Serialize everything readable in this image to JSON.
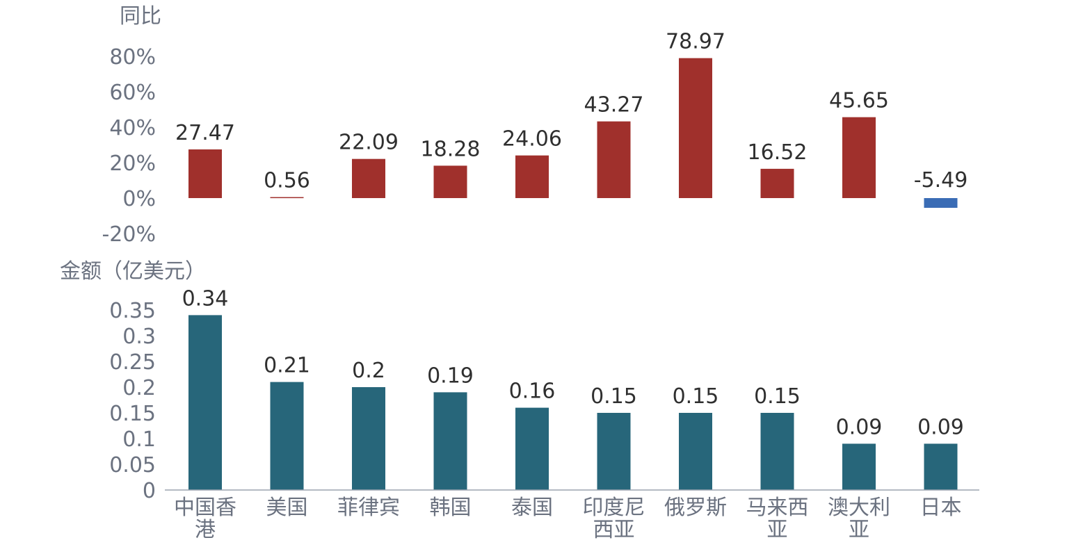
{
  "chart_data": [
    {
      "type": "bar",
      "ylabel": "同比",
      "categories": [
        "中国香港",
        "美国",
        "菲律宾",
        "韩国",
        "泰国",
        "印度尼西亚",
        "俄罗斯",
        "马来西亚",
        "澳大利亚",
        "日本"
      ],
      "values": [
        27.47,
        0.56,
        22.09,
        18.28,
        24.06,
        43.27,
        78.97,
        16.52,
        45.65,
        -5.49
      ],
      "data_labels": [
        "27.47",
        "0.56",
        "22.09",
        "18.28",
        "24.06",
        "43.27",
        "78.97",
        "16.52",
        "45.65",
        "-5.49"
      ],
      "ylim": [
        -20,
        80
      ],
      "yticks": [
        -20,
        0,
        20,
        40,
        60,
        80
      ],
      "ytick_labels": [
        "-20%",
        "0%",
        "20%",
        "40%",
        "60%",
        "80%"
      ],
      "colors": {
        "positive": "#A0302C",
        "negative": "#3A6CB5"
      },
      "grid": false
    },
    {
      "type": "bar",
      "ylabel": "金额（亿美元）",
      "categories": [
        "中国香港",
        "美国",
        "菲律宾",
        "韩国",
        "泰国",
        "印度尼西亚",
        "俄罗斯",
        "马来西亚",
        "澳大利亚",
        "日本"
      ],
      "category_labels": [
        [
          "中国香",
          "港"
        ],
        [
          "美国"
        ],
        [
          "菲律宾"
        ],
        [
          "韩国"
        ],
        [
          "泰国"
        ],
        [
          "印度尼",
          "西亚"
        ],
        [
          "俄罗斯"
        ],
        [
          "马来西",
          "亚"
        ],
        [
          "澳大利",
          "亚"
        ],
        [
          "日本"
        ]
      ],
      "values": [
        0.34,
        0.21,
        0.2,
        0.19,
        0.16,
        0.15,
        0.15,
        0.15,
        0.09,
        0.09
      ],
      "data_labels": [
        "0.34",
        "0.21",
        "0.2",
        "0.19",
        "0.16",
        "0.15",
        "0.15",
        "0.15",
        "0.09",
        "0.09"
      ],
      "ylim": [
        0,
        0.35
      ],
      "yticks": [
        0,
        0.05,
        0.1,
        0.15,
        0.2,
        0.25,
        0.3,
        0.35
      ],
      "ytick_labels": [
        "0",
        "0.05",
        "0.1",
        "0.15",
        "0.2",
        "0.25",
        "0.3",
        "0.35"
      ],
      "colors": {
        "bar": "#27667A",
        "axis": "#9ca3af"
      },
      "grid": false
    }
  ]
}
